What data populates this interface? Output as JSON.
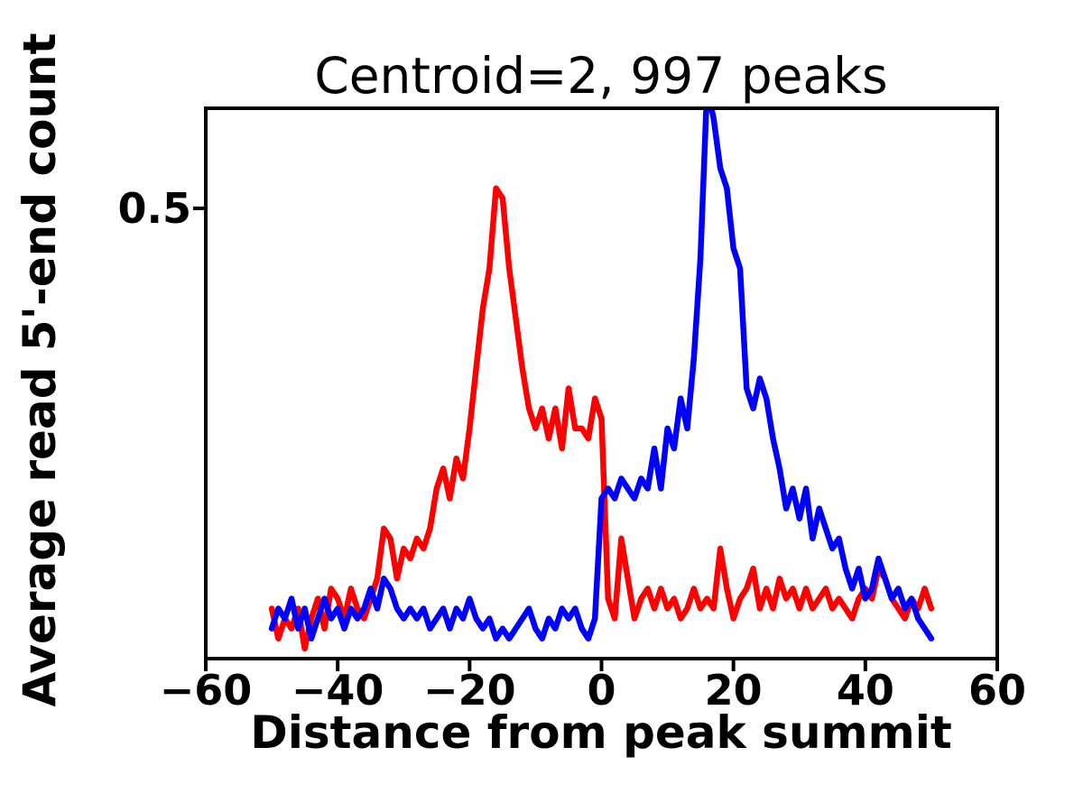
{
  "page": {
    "background": "#ffffff"
  },
  "chart_data": {
    "type": "line",
    "title": "Centroid=2, 997 peaks",
    "xlabel": "Distance from peak summit",
    "ylabel": "Average read 5'-end count",
    "xlim": [
      -60,
      60
    ],
    "ylim": [
      0.05,
      0.6
    ],
    "x_ticks": [
      -60,
      -40,
      -20,
      0,
      20,
      40,
      60
    ],
    "x_tick_labels": [
      "−60",
      "−40",
      "−20",
      "0",
      "20",
      "40",
      "60"
    ],
    "y_ticks": [
      0.5
    ],
    "y_tick_labels": [
      "0.5"
    ],
    "grid": false,
    "legend": "none",
    "axis_color": "#000000",
    "x": [
      -50,
      -49,
      -48,
      -47,
      -46,
      -45,
      -44,
      -43,
      -42,
      -41,
      -40,
      -39,
      -38,
      -37,
      -36,
      -35,
      -34,
      -33,
      -32,
      -31,
      -30,
      -29,
      -28,
      -27,
      -26,
      -25,
      -24,
      -23,
      -22,
      -21,
      -20,
      -19,
      -18,
      -17,
      -16,
      -15,
      -14,
      -13,
      -12,
      -11,
      -10,
      -9,
      -8,
      -7,
      -6,
      -5,
      -4,
      -3,
      -2,
      -1,
      0,
      1,
      2,
      3,
      4,
      5,
      6,
      7,
      8,
      9,
      10,
      11,
      12,
      13,
      14,
      15,
      16,
      17,
      18,
      19,
      20,
      21,
      22,
      23,
      24,
      25,
      26,
      27,
      28,
      29,
      30,
      31,
      32,
      33,
      34,
      35,
      36,
      37,
      38,
      39,
      40,
      41,
      42,
      43,
      44,
      45,
      46,
      47,
      48,
      49,
      50
    ],
    "series": [
      {
        "name": "red",
        "color": "#ff0000",
        "values": [
          0.1,
          0.07,
          0.09,
          0.08,
          0.1,
          0.06,
          0.09,
          0.11,
          0.08,
          0.12,
          0.11,
          0.09,
          0.12,
          0.1,
          0.09,
          0.11,
          0.13,
          0.18,
          0.17,
          0.13,
          0.16,
          0.15,
          0.17,
          0.16,
          0.18,
          0.22,
          0.24,
          0.21,
          0.25,
          0.23,
          0.28,
          0.34,
          0.4,
          0.44,
          0.52,
          0.51,
          0.44,
          0.39,
          0.34,
          0.3,
          0.28,
          0.3,
          0.27,
          0.3,
          0.26,
          0.32,
          0.28,
          0.28,
          0.27,
          0.31,
          0.29,
          0.11,
          0.09,
          0.17,
          0.13,
          0.09,
          0.11,
          0.12,
          0.1,
          0.12,
          0.1,
          0.11,
          0.09,
          0.1,
          0.12,
          0.1,
          0.11,
          0.1,
          0.16,
          0.12,
          0.09,
          0.11,
          0.12,
          0.14,
          0.1,
          0.12,
          0.1,
          0.13,
          0.11,
          0.12,
          0.1,
          0.12,
          0.1,
          0.11,
          0.12,
          0.1,
          0.11,
          0.1,
          0.09,
          0.11,
          0.12,
          0.11,
          0.14,
          0.13,
          0.11,
          0.1,
          0.09,
          0.11,
          0.1,
          0.12,
          0.1
        ]
      },
      {
        "name": "blue",
        "color": "#0000ff",
        "values": [
          0.08,
          0.1,
          0.09,
          0.11,
          0.08,
          0.1,
          0.07,
          0.09,
          0.11,
          0.09,
          0.1,
          0.08,
          0.1,
          0.09,
          0.1,
          0.12,
          0.1,
          0.13,
          0.12,
          0.1,
          0.09,
          0.1,
          0.09,
          0.1,
          0.08,
          0.09,
          0.1,
          0.08,
          0.1,
          0.09,
          0.11,
          0.09,
          0.08,
          0.09,
          0.07,
          0.08,
          0.07,
          0.08,
          0.09,
          0.1,
          0.08,
          0.07,
          0.09,
          0.08,
          0.1,
          0.09,
          0.1,
          0.08,
          0.07,
          0.09,
          0.21,
          0.22,
          0.21,
          0.23,
          0.22,
          0.21,
          0.23,
          0.22,
          0.26,
          0.22,
          0.28,
          0.26,
          0.31,
          0.28,
          0.35,
          0.45,
          0.62,
          0.59,
          0.54,
          0.52,
          0.46,
          0.44,
          0.32,
          0.3,
          0.33,
          0.31,
          0.27,
          0.24,
          0.2,
          0.22,
          0.19,
          0.22,
          0.17,
          0.2,
          0.18,
          0.16,
          0.17,
          0.14,
          0.12,
          0.14,
          0.11,
          0.12,
          0.15,
          0.13,
          0.11,
          0.12,
          0.1,
          0.11,
          0.09,
          0.08,
          0.07
        ]
      }
    ]
  }
}
